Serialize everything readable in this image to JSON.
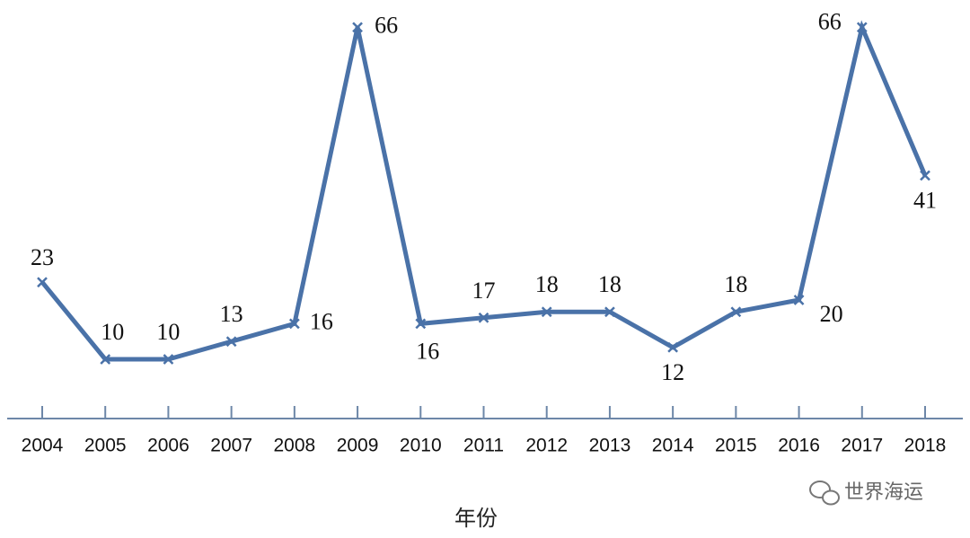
{
  "chart_data": {
    "type": "line",
    "x_label": "年份",
    "categories": [
      "2004",
      "2005",
      "2006",
      "2007",
      "2008",
      "2009",
      "2010",
      "2011",
      "2012",
      "2013",
      "2014",
      "2015",
      "2016",
      "2017",
      "2018"
    ],
    "values": [
      23,
      10,
      10,
      13,
      16,
      66,
      16,
      17,
      18,
      18,
      12,
      18,
      20,
      66,
      41
    ],
    "color": "#4a72a8",
    "ylim": [
      0,
      70
    ],
    "watermark": "世界海运"
  }
}
